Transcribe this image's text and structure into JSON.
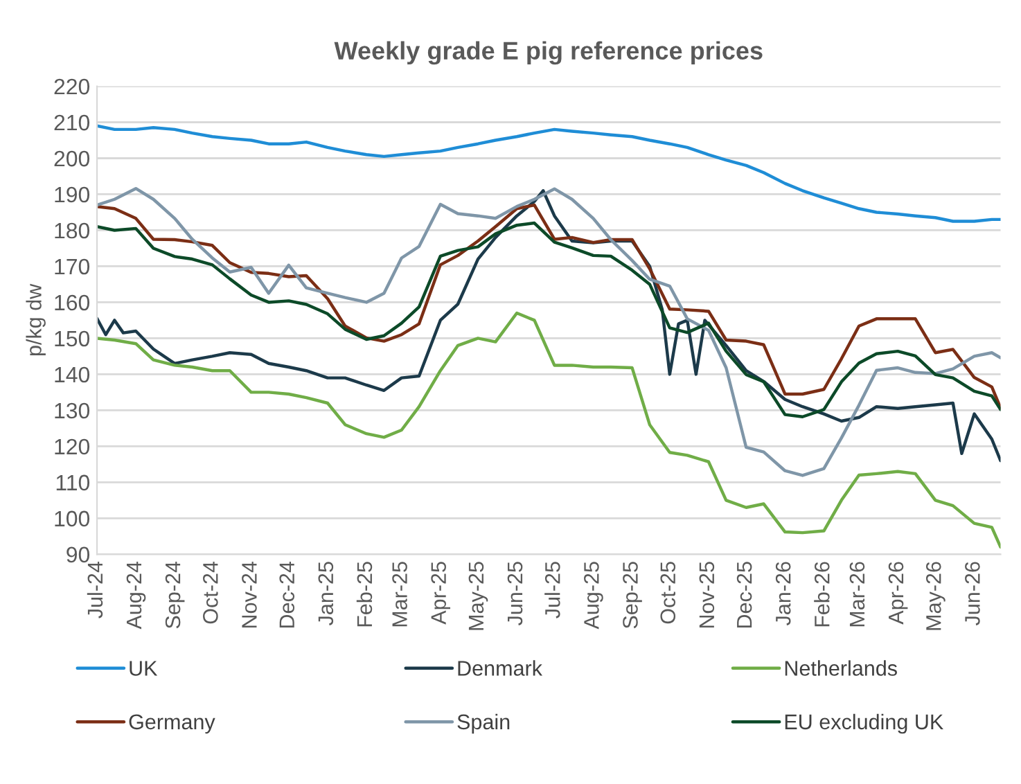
{
  "chart_data": {
    "type": "line",
    "title": "Weekly grade E pig reference prices",
    "ylabel": "p/kg dw",
    "x": [
      "2024-07-01",
      "2024-07-15",
      "2024-08-01",
      "2024-08-15",
      "2024-09-01",
      "2024-09-15",
      "2024-10-01",
      "2024-10-15",
      "2024-11-01",
      "2024-11-15",
      "2024-12-01",
      "2024-12-15",
      "2025-01-01",
      "2025-01-15",
      "2025-02-01",
      "2025-02-15",
      "2025-03-01",
      "2025-03-15",
      "2025-04-01",
      "2025-04-15",
      "2025-05-01",
      "2025-05-15",
      "2025-06-01",
      "2025-06-15",
      "2025-07-01",
      "2025-07-15",
      "2025-08-01",
      "2025-08-15",
      "2025-09-01",
      "2025-09-15",
      "2025-10-01",
      "2025-10-15",
      "2025-11-01",
      "2025-11-15",
      "2025-12-01",
      "2025-12-15",
      "2026-01-01",
      "2026-01-15",
      "2026-02-01",
      "2026-02-15",
      "2026-03-01",
      "2026-03-15",
      "2026-04-01",
      "2026-04-15",
      "2026-05-01",
      "2026-05-15",
      "2026-06-01",
      "2026-06-15",
      "2026-06-22"
    ],
    "series": [
      {
        "name": "UK",
        "color": "#1f8dd6",
        "values": [
          209,
          208,
          208,
          208.5,
          208,
          207,
          206,
          205.5,
          205,
          204,
          204,
          204.5,
          203,
          202,
          201,
          200.5,
          201,
          201.5,
          202,
          203,
          204,
          205,
          206,
          207,
          208,
          207.5,
          207,
          206.5,
          206,
          205,
          204,
          203,
          201,
          199.5,
          198,
          196,
          193,
          191,
          189,
          187.5,
          186,
          185,
          184.5,
          184,
          183.5,
          182.5,
          182.5,
          183,
          183
        ]
      },
      {
        "name": "Denmark",
        "color": "#1c3a4a",
        "x": [
          "2024-07-01",
          "2024-07-08",
          "2024-07-15",
          "2024-07-22",
          "2024-08-01",
          "2024-08-15",
          "2024-09-01",
          "2024-09-15",
          "2024-10-01",
          "2024-10-15",
          "2024-11-01",
          "2024-11-15",
          "2024-12-01",
          "2024-12-15",
          "2025-01-01",
          "2025-01-15",
          "2025-02-01",
          "2025-02-15",
          "2025-03-01",
          "2025-03-15",
          "2025-04-01",
          "2025-04-15",
          "2025-05-01",
          "2025-05-15",
          "2025-06-01",
          "2025-06-15",
          "2025-06-22",
          "2025-07-01",
          "2025-07-15",
          "2025-08-01",
          "2025-08-15",
          "2025-09-01",
          "2025-09-15",
          "2025-09-25",
          "2025-10-01",
          "2025-10-08",
          "2025-10-15",
          "2025-10-22",
          "2025-10-29",
          "2025-11-15",
          "2025-12-01",
          "2025-12-15",
          "2026-01-01",
          "2026-01-15",
          "2026-02-01",
          "2026-02-15",
          "2026-03-01",
          "2026-03-15",
          "2026-04-01",
          "2026-04-15",
          "2026-05-01",
          "2026-05-15",
          "2026-05-22",
          "2026-06-01",
          "2026-06-15",
          "2026-06-22"
        ],
        "values": [
          155.5,
          151,
          155,
          151.5,
          152,
          147,
          143,
          144,
          145,
          146,
          145.5,
          143,
          142,
          141,
          139,
          139,
          137,
          135.5,
          139,
          139.5,
          155,
          159.5,
          172,
          178,
          184,
          188,
          191,
          184,
          177,
          176.5,
          177,
          177,
          170,
          158,
          140,
          154,
          155,
          140,
          155,
          148,
          141,
          138,
          133,
          131,
          129,
          127,
          128,
          131,
          130.5,
          131,
          131.5,
          132,
          118,
          129,
          122,
          116
        ]
      },
      {
        "name": "Netherlands",
        "color": "#70ad47",
        "values": [
          150,
          149.5,
          148.5,
          144,
          142.5,
          142,
          141,
          141,
          135,
          135,
          134.5,
          133.5,
          132,
          126,
          123.5,
          122.5,
          124.5,
          131,
          141,
          148,
          150,
          149,
          157,
          155,
          142.5,
          142.5,
          142,
          142,
          141.8,
          126,
          118.3,
          117.5,
          115.7,
          105,
          103,
          104,
          96.2,
          96,
          96.5,
          105,
          112,
          112.4,
          113,
          112.4,
          105,
          103.5,
          98.6,
          97.5,
          92
        ]
      },
      {
        "name": "Germany",
        "color": "#7b2e15",
        "values": [
          186.6,
          186,
          183.3,
          177.5,
          177.4,
          176.8,
          175.8,
          171,
          168.3,
          168,
          167.1,
          167.4,
          161,
          153.4,
          150.1,
          149.2,
          151,
          154,
          170.4,
          173,
          177,
          181,
          186,
          187,
          177.5,
          178,
          176.6,
          177.4,
          177.4,
          169.3,
          158.1,
          157.9,
          157.5,
          149.5,
          149.2,
          148.2,
          134.5,
          134.5,
          135.8,
          144.3,
          153.4,
          155.4,
          155.4,
          155.4,
          146,
          146.9,
          139.1,
          136.5,
          130.6
        ]
      },
      {
        "name": "Spain",
        "color": "#7f96a8",
        "values": [
          187,
          188.6,
          191.6,
          188.6,
          183.3,
          177.5,
          172.3,
          168.4,
          169.7,
          162.5,
          170.3,
          164,
          162.5,
          161.3,
          160,
          162.5,
          172.3,
          175.5,
          187.2,
          184.6,
          184,
          183.3,
          186.6,
          188.6,
          191.5,
          188.6,
          183.3,
          177.4,
          171.6,
          166.4,
          164.5,
          155.4,
          152.2,
          141.8,
          119.7,
          118.4,
          113.2,
          111.9,
          113.8,
          122.3,
          131.4,
          141.1,
          141.8,
          140.5,
          140.2,
          141.5,
          145,
          146,
          144.6
        ]
      },
      {
        "name": "EU excluding UK",
        "color": "#0c4a28",
        "values": [
          181,
          180,
          180.5,
          175,
          172.7,
          172,
          170.4,
          166.5,
          162,
          160,
          160.4,
          159.4,
          156.8,
          152.5,
          149.7,
          150.7,
          154.2,
          158.7,
          172.8,
          174.4,
          175.4,
          179,
          181.4,
          182,
          176.7,
          175.1,
          173,
          172.8,
          168.9,
          165,
          152.9,
          151.6,
          154.2,
          146.4,
          139.9,
          137.9,
          128.8,
          128.2,
          130.2,
          137.9,
          143.1,
          145.7,
          146.4,
          145.1,
          139.9,
          139,
          135.3,
          134,
          130.2
        ]
      }
    ],
    "xlim": [
      "2024-07-01",
      "2026-06-22"
    ],
    "xticks": [
      {
        "value": "2024-07-01",
        "label": "Jul-24"
      },
      {
        "value": "2024-08-01",
        "label": "Aug-24"
      },
      {
        "value": "2024-09-01",
        "label": "Sep-24"
      },
      {
        "value": "2024-10-01",
        "label": "Oct-24"
      },
      {
        "value": "2024-11-01",
        "label": "Nov-24"
      },
      {
        "value": "2024-12-01",
        "label": "Dec-24"
      },
      {
        "value": "2025-01-01",
        "label": "Jan-25"
      },
      {
        "value": "2025-02-01",
        "label": "Feb-25"
      },
      {
        "value": "2025-03-01",
        "label": "Mar-25"
      },
      {
        "value": "2025-04-01",
        "label": "Apr-25"
      },
      {
        "value": "2025-05-01",
        "label": "May-25"
      },
      {
        "value": "2025-06-01",
        "label": "Jun-25"
      },
      {
        "value": "2025-07-01",
        "label": "Jul-25"
      },
      {
        "value": "2025-08-01",
        "label": "Aug-25"
      },
      {
        "value": "2025-09-01",
        "label": "Sep-25"
      },
      {
        "value": "2025-10-01",
        "label": "Oct-25"
      },
      {
        "value": "2025-11-01",
        "label": "Nov-25"
      },
      {
        "value": "2025-12-01",
        "label": "Dec-25"
      },
      {
        "value": "2026-01-01",
        "label": "Jan-26"
      },
      {
        "value": "2026-02-01",
        "label": "Feb-26"
      },
      {
        "value": "2026-03-01",
        "label": "Mar-26"
      },
      {
        "value": "2026-04-01",
        "label": "Apr-26"
      },
      {
        "value": "2026-05-01",
        "label": "May-26"
      },
      {
        "value": "2026-06-01",
        "label": "Jun-26"
      }
    ],
    "ylim": [
      90,
      220
    ],
    "yticks": [
      90,
      100,
      110,
      120,
      130,
      140,
      150,
      160,
      170,
      180,
      190,
      200,
      210,
      220
    ],
    "grid": "y",
    "legend": "bottom",
    "marker": "none",
    "line_style": "solid"
  }
}
